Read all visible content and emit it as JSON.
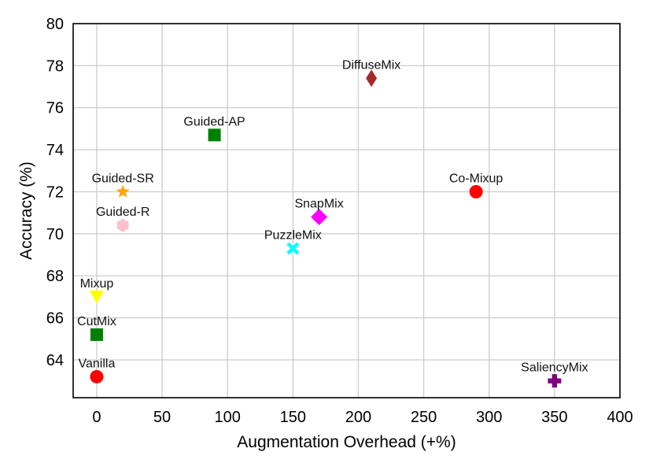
{
  "chart_data": {
    "type": "scatter",
    "title": "",
    "xlabel": "Augmentation Overhead (+%)",
    "ylabel": "Accuracy (%)",
    "xlim": [
      -18,
      400
    ],
    "ylim": [
      62.2,
      80
    ],
    "xticks": [
      0,
      50,
      100,
      150,
      200,
      250,
      300,
      350,
      400
    ],
    "yticks": [
      64,
      66,
      68,
      70,
      72,
      74,
      76,
      78,
      80
    ],
    "grid": true,
    "points": [
      {
        "label": "Vanilla",
        "x": 0,
        "y": 63.2,
        "marker": "circle",
        "color": "#ff0000",
        "label_pos": "above"
      },
      {
        "label": "CutMix",
        "x": 0,
        "y": 65.2,
        "marker": "square",
        "color": "#008000",
        "label_pos": "above"
      },
      {
        "label": "Mixup",
        "x": 0,
        "y": 67.0,
        "marker": "triangle-down",
        "color": "#ffff00",
        "label_pos": "above"
      },
      {
        "label": "Guided-R",
        "x": 20,
        "y": 70.4,
        "marker": "hexagon",
        "color": "#ffc0cb",
        "label_pos": "above"
      },
      {
        "label": "Guided-SR",
        "x": 20,
        "y": 72.0,
        "marker": "star",
        "color": "#ffa500",
        "label_pos": "above"
      },
      {
        "label": "Guided-AP",
        "x": 90,
        "y": 74.7,
        "marker": "square",
        "color": "#008000",
        "label_pos": "above"
      },
      {
        "label": "PuzzleMix",
        "x": 150,
        "y": 69.3,
        "marker": "x-cross",
        "color": "#00ffff",
        "label_pos": "above"
      },
      {
        "label": "SnapMix",
        "x": 170,
        "y": 70.8,
        "marker": "diamond",
        "color": "#ff00ff",
        "label_pos": "above"
      },
      {
        "label": "DiffuseMix",
        "x": 210,
        "y": 77.4,
        "marker": "thin-diamond",
        "color": "#a52a2a",
        "label_pos": "above"
      },
      {
        "label": "Co-Mixup",
        "x": 290,
        "y": 72.0,
        "marker": "circle",
        "color": "#ff0000",
        "label_pos": "above"
      },
      {
        "label": "SaliencyMix",
        "x": 350,
        "y": 63.0,
        "marker": "plus",
        "color": "#800080",
        "label_pos": "above"
      }
    ]
  }
}
